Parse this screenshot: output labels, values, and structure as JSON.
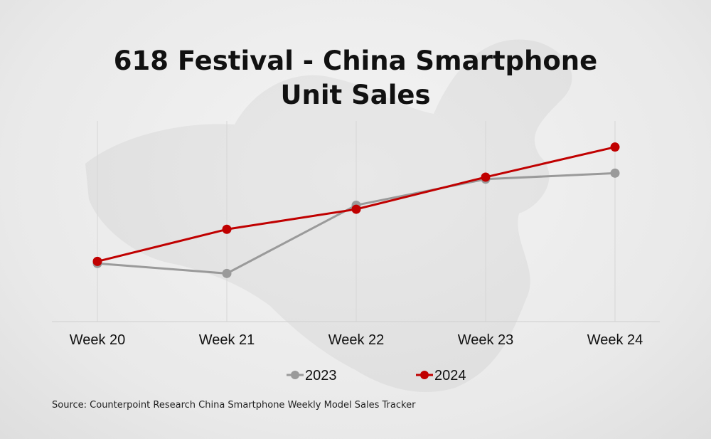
{
  "chart_data": {
    "type": "line",
    "title_lines": [
      "618 Festival - China Smartphone",
      "Unit Sales"
    ],
    "categories": [
      "Week 20",
      "Week 21",
      "Week 22",
      "Week 23",
      "Week 24"
    ],
    "series": [
      {
        "name": "2023",
        "values": [
          29,
          24,
          58,
          71,
          74
        ],
        "color": "#9a9a9a"
      },
      {
        "name": "2024",
        "values": [
          30,
          46,
          56,
          72,
          87
        ],
        "color": "#c00000"
      }
    ],
    "ylim": [
      0,
      100
    ],
    "y_axis_labels_shown": false,
    "grid": "vertical",
    "legend_position": "bottom"
  },
  "source": "Source: Counterpoint Research China Smartphone Weekly Model Sales Tracker"
}
